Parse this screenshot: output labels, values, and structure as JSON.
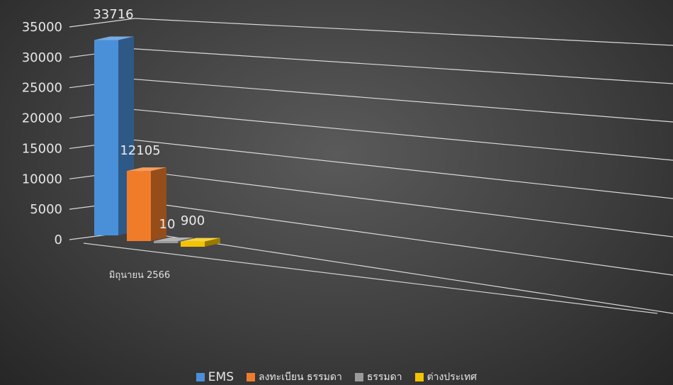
{
  "chart_data": {
    "type": "bar",
    "three_d": true,
    "categories": [
      "มิถุนายน 2566"
    ],
    "series": [
      {
        "name": "EMS",
        "values": [
          33716
        ],
        "color": "#4a90d9",
        "data_label": "33716"
      },
      {
        "name": "ลงทะเบียน ธรรมดา",
        "values": [
          12105
        ],
        "color": "#f07c2a",
        "data_label": "12105"
      },
      {
        "name": "ธรรมดา",
        "values": [
          10
        ],
        "color": "#9a9a9a",
        "data_label": "10"
      },
      {
        "name": "ต่างประเทศ",
        "values": [
          900
        ],
        "color": "#f5c400",
        "data_label": "900"
      }
    ],
    "y_ticks": [
      "0",
      "5000",
      "10000",
      "15000",
      "20000",
      "25000",
      "30000",
      "35000"
    ],
    "ylim": [
      0,
      35000
    ],
    "grid": true,
    "legend_position": "bottom"
  }
}
